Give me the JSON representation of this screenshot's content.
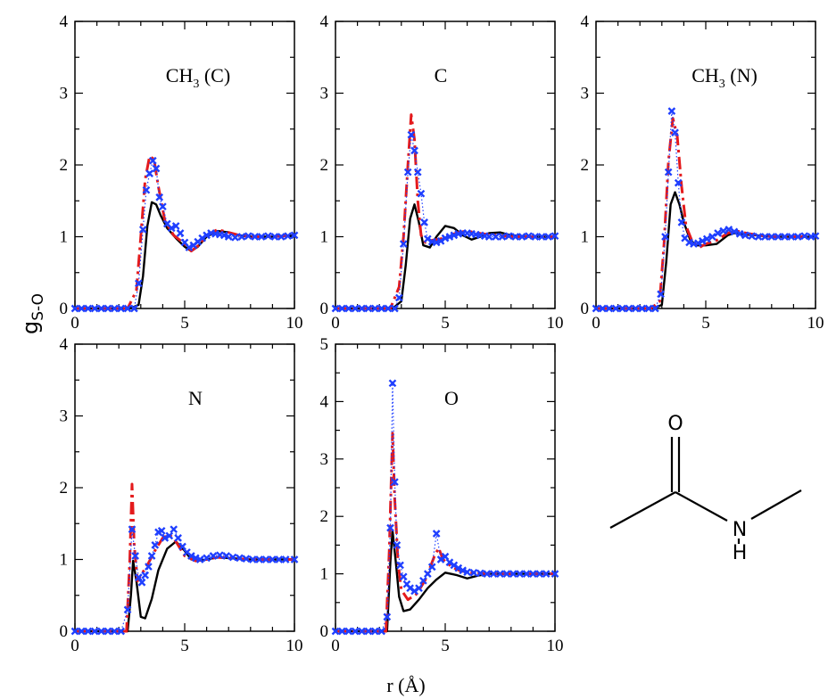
{
  "figure": {
    "ylabel_main": "g",
    "ylabel_sub": "S-O",
    "xlabel": "r (Å)"
  },
  "molecule": {
    "atoms": [
      "O",
      "N",
      "H"
    ]
  },
  "chart_data": [
    {
      "type": "line",
      "title_main": "CH",
      "title_sub": "3",
      "title_rest": " (C)",
      "xlim": [
        0,
        10
      ],
      "ylim": [
        0,
        4
      ],
      "xticks": [
        0,
        5,
        10
      ],
      "yticks": [
        0,
        1,
        2,
        3,
        4
      ],
      "series": [
        {
          "color": "#000000",
          "style": "solid",
          "x": [
            0,
            2.5,
            2.9,
            3.1,
            3.3,
            3.5,
            3.7,
            3.9,
            4.2,
            4.6,
            5.0,
            5.3,
            5.6,
            6.0,
            6.5,
            7.0,
            7.5,
            8.0,
            9.0,
            10.0
          ],
          "y": [
            0,
            0,
            0.05,
            0.45,
            1.15,
            1.48,
            1.45,
            1.3,
            1.12,
            0.98,
            0.86,
            0.8,
            0.86,
            1.0,
            1.08,
            1.06,
            1.02,
            1.0,
            1.0,
            1.02
          ]
        },
        {
          "color": "#e41a1c",
          "style": "dash",
          "x": [
            0,
            2.4,
            2.8,
            3.0,
            3.2,
            3.4,
            3.6,
            3.8,
            4.1,
            4.5,
            5.0,
            5.3,
            5.6,
            6.0,
            6.5,
            7.0,
            7.5,
            8.0,
            9.0,
            10.0
          ],
          "y": [
            0,
            0,
            0.25,
            1.0,
            1.8,
            2.12,
            2.08,
            1.7,
            1.22,
            1.02,
            0.9,
            0.8,
            0.87,
            1.02,
            1.1,
            1.06,
            1.02,
            1.0,
            1.0,
            1.02
          ]
        },
        {
          "color": "#1f3fff",
          "style": "markers",
          "x": [
            0,
            0.3,
            0.6,
            0.9,
            1.2,
            1.5,
            1.8,
            2.1,
            2.4,
            2.7,
            2.9,
            3.1,
            3.25,
            3.4,
            3.55,
            3.7,
            3.85,
            4.0,
            4.2,
            4.4,
            4.6,
            4.8,
            5.0,
            5.2,
            5.4,
            5.6,
            5.8,
            6.0,
            6.2,
            6.4,
            6.6,
            6.8,
            7.0,
            7.3,
            7.6,
            7.9,
            8.2,
            8.5,
            8.8,
            9.1,
            9.4,
            9.7,
            10.0
          ],
          "y": [
            0,
            0,
            0,
            0,
            0,
            0,
            0,
            0,
            0,
            0,
            0.35,
            1.1,
            1.65,
            1.88,
            2.06,
            1.95,
            1.55,
            1.42,
            1.18,
            1.12,
            1.15,
            1.05,
            0.92,
            0.85,
            0.88,
            0.93,
            0.98,
            1.02,
            1.05,
            1.04,
            1.03,
            1.02,
            1.0,
            0.99,
            1.0,
            1.01,
            1.0,
            1.0,
            1.01,
            1.0,
            1.0,
            1.01,
            1.02
          ]
        }
      ]
    },
    {
      "type": "line",
      "title_main": "C",
      "title_sub": "",
      "title_rest": "",
      "xlim": [
        0,
        10
      ],
      "ylim": [
        0,
        4
      ],
      "xticks": [
        0,
        5,
        10
      ],
      "yticks": [
        0,
        1,
        2,
        3,
        4
      ],
      "series": [
        {
          "color": "#000000",
          "style": "solid",
          "x": [
            0,
            2.6,
            3.0,
            3.2,
            3.4,
            3.6,
            3.8,
            4.0,
            4.3,
            4.6,
            5.0,
            5.4,
            5.8,
            6.2,
            6.6,
            7.0,
            7.5,
            8.0,
            9.0,
            10.0
          ],
          "y": [
            0,
            0,
            0.1,
            0.6,
            1.25,
            1.45,
            1.2,
            0.88,
            0.85,
            1.0,
            1.15,
            1.12,
            1.02,
            0.96,
            1.0,
            1.05,
            1.06,
            1.02,
            1.0,
            1.0
          ]
        },
        {
          "color": "#e41a1c",
          "style": "dash",
          "x": [
            0,
            2.5,
            2.9,
            3.1,
            3.3,
            3.45,
            3.6,
            3.75,
            3.9,
            4.1,
            4.4,
            4.8,
            5.2,
            5.6,
            6.0,
            6.5,
            7.0,
            8.0,
            9.0,
            10.0
          ],
          "y": [
            0,
            0,
            0.3,
            1.0,
            2.0,
            2.7,
            2.35,
            1.5,
            1.02,
            0.92,
            0.95,
            0.97,
            1.02,
            1.06,
            1.08,
            1.05,
            1.03,
            1.0,
            1.0,
            1.0
          ]
        },
        {
          "color": "#1f3fff",
          "style": "markers",
          "x": [
            0,
            0.3,
            0.6,
            0.9,
            1.2,
            1.5,
            1.8,
            2.1,
            2.4,
            2.7,
            2.9,
            3.1,
            3.3,
            3.45,
            3.6,
            3.75,
            3.9,
            4.05,
            4.2,
            4.4,
            4.6,
            4.8,
            5.0,
            5.2,
            5.4,
            5.6,
            5.8,
            6.0,
            6.2,
            6.4,
            6.6,
            6.8,
            7.0,
            7.3,
            7.6,
            7.9,
            8.2,
            8.5,
            8.8,
            9.1,
            9.4,
            9.7,
            10.0
          ],
          "y": [
            0,
            0,
            0,
            0,
            0,
            0,
            0,
            0,
            0,
            0,
            0.15,
            0.9,
            1.9,
            2.42,
            2.2,
            1.9,
            1.6,
            1.2,
            0.97,
            0.93,
            0.92,
            0.94,
            0.98,
            1.0,
            1.02,
            1.04,
            1.05,
            1.05,
            1.04,
            1.03,
            1.02,
            1.01,
            1.0,
            1.0,
            1.0,
            1.01,
            1.0,
            1.0,
            1.01,
            1.0,
            1.0,
            1.0,
            1.01
          ]
        }
      ]
    },
    {
      "type": "line",
      "title_main": "CH",
      "title_sub": "3",
      "title_rest": " (N)",
      "xlim": [
        0,
        10
      ],
      "ylim": [
        0,
        4
      ],
      "xticks": [
        0,
        5,
        10
      ],
      "yticks": [
        0,
        1,
        2,
        3,
        4
      ],
      "series": [
        {
          "color": "#000000",
          "style": "solid",
          "x": [
            0,
            2.6,
            3.0,
            3.2,
            3.4,
            3.6,
            3.8,
            4.0,
            4.3,
            4.6,
            5.0,
            5.5,
            6.0,
            6.3,
            6.8,
            7.3,
            8.0,
            9.0,
            10.0
          ],
          "y": [
            0,
            0,
            0.05,
            0.65,
            1.45,
            1.62,
            1.45,
            1.2,
            0.95,
            0.88,
            0.88,
            0.9,
            1.02,
            1.05,
            1.03,
            1.02,
            1.0,
            1.0,
            1.0
          ]
        },
        {
          "color": "#e41a1c",
          "style": "dash",
          "x": [
            0,
            2.5,
            2.9,
            3.1,
            3.3,
            3.5,
            3.7,
            3.9,
            4.1,
            4.4,
            4.7,
            5.0,
            5.5,
            6.0,
            6.4,
            7.0,
            8.0,
            9.0,
            10.0
          ],
          "y": [
            0,
            0,
            0.1,
            0.9,
            2.05,
            2.65,
            2.4,
            1.7,
            1.15,
            0.92,
            0.85,
            0.9,
            0.95,
            1.05,
            1.08,
            1.04,
            1.0,
            1.0,
            1.0
          ]
        },
        {
          "color": "#1f3fff",
          "style": "markers",
          "x": [
            0,
            0.3,
            0.6,
            0.9,
            1.2,
            1.5,
            1.8,
            2.1,
            2.4,
            2.7,
            2.95,
            3.15,
            3.3,
            3.45,
            3.6,
            3.75,
            3.9,
            4.05,
            4.25,
            4.45,
            4.65,
            4.85,
            5.05,
            5.3,
            5.55,
            5.8,
            6.05,
            6.3,
            6.55,
            6.8,
            7.1,
            7.4,
            7.7,
            8.0,
            8.3,
            8.6,
            8.9,
            9.2,
            9.5,
            9.8,
            10.0
          ],
          "y": [
            0,
            0,
            0,
            0,
            0,
            0,
            0,
            0,
            0,
            0,
            0.2,
            1.0,
            1.9,
            2.75,
            2.45,
            1.75,
            1.2,
            0.98,
            0.92,
            0.9,
            0.91,
            0.94,
            0.97,
            1.0,
            1.05,
            1.08,
            1.1,
            1.07,
            1.04,
            1.02,
            1.01,
            1.0,
            1.0,
            1.0,
            1.0,
            1.0,
            1.0,
            1.0,
            1.01,
            1.0,
            1.01
          ]
        }
      ]
    },
    {
      "type": "line",
      "title_main": "N",
      "title_sub": "",
      "title_rest": "",
      "xlim": [
        0,
        10
      ],
      "ylim": [
        0,
        4
      ],
      "xticks": [
        0,
        5,
        10
      ],
      "yticks": [
        0,
        1,
        2,
        3,
        4
      ],
      "series": [
        {
          "color": "#000000",
          "style": "solid",
          "x": [
            0,
            2.4,
            2.55,
            2.65,
            2.8,
            3.0,
            3.2,
            3.5,
            3.8,
            4.2,
            4.6,
            5.0,
            5.3,
            5.6,
            6.0,
            6.5,
            7.0,
            8.0,
            9.0,
            10.0
          ],
          "y": [
            0,
            0,
            0.5,
            0.98,
            0.7,
            0.2,
            0.18,
            0.45,
            0.85,
            1.15,
            1.25,
            1.12,
            1.0,
            0.98,
            1.0,
            1.03,
            1.02,
            1.0,
            1.0,
            1.0
          ]
        },
        {
          "color": "#e41a1c",
          "style": "dash",
          "x": [
            0,
            2.35,
            2.5,
            2.6,
            2.7,
            2.85,
            3.0,
            3.3,
            3.6,
            4.0,
            4.3,
            4.6,
            5.0,
            5.5,
            6.0,
            6.5,
            7.0,
            8.0,
            9.0,
            10.0
          ],
          "y": [
            0,
            0,
            1.0,
            2.05,
            1.2,
            0.7,
            0.78,
            0.92,
            1.1,
            1.3,
            1.35,
            1.25,
            1.05,
            0.98,
            1.0,
            1.03,
            1.02,
            1.0,
            1.0,
            1.0
          ]
        },
        {
          "color": "#1f3fff",
          "style": "markers",
          "x": [
            0,
            0.3,
            0.6,
            0.9,
            1.2,
            1.5,
            1.8,
            2.1,
            2.4,
            2.6,
            2.75,
            2.9,
            3.05,
            3.2,
            3.35,
            3.5,
            3.65,
            3.8,
            3.95,
            4.1,
            4.3,
            4.5,
            4.7,
            4.9,
            5.1,
            5.3,
            5.5,
            5.7,
            6.0,
            6.3,
            6.6,
            6.9,
            7.2,
            7.5,
            7.8,
            8.1,
            8.4,
            8.7,
            9.0,
            9.3,
            9.6,
            10.0
          ],
          "y": [
            0,
            0,
            0,
            0,
            0,
            0,
            0,
            0,
            0.3,
            1.42,
            1.05,
            0.75,
            0.68,
            0.78,
            0.9,
            1.05,
            1.2,
            1.38,
            1.4,
            1.3,
            1.33,
            1.42,
            1.3,
            1.18,
            1.1,
            1.05,
            1.02,
            1.0,
            1.02,
            1.05,
            1.06,
            1.05,
            1.03,
            1.02,
            1.01,
            1.0,
            1.0,
            1.0,
            1.0,
            1.0,
            1.0,
            1.0
          ]
        }
      ]
    },
    {
      "type": "line",
      "title_main": "O",
      "title_sub": "",
      "title_rest": "",
      "xlim": [
        0,
        10
      ],
      "ylim": [
        0,
        5
      ],
      "xticks": [
        0,
        5,
        10
      ],
      "yticks": [
        0,
        1,
        2,
        3,
        4,
        5
      ],
      "series": [
        {
          "color": "#000000",
          "style": "solid",
          "x": [
            0,
            2.35,
            2.5,
            2.6,
            2.75,
            2.9,
            3.1,
            3.4,
            3.8,
            4.2,
            4.6,
            5.0,
            5.5,
            6.0,
            6.5,
            7.0,
            8.0,
            9.0,
            10.0
          ],
          "y": [
            0,
            0,
            1.2,
            1.75,
            1.2,
            0.6,
            0.35,
            0.38,
            0.55,
            0.75,
            0.9,
            1.02,
            0.98,
            0.92,
            0.97,
            1.0,
            1.0,
            1.0,
            1.0
          ]
        },
        {
          "color": "#e41a1c",
          "style": "dash",
          "x": [
            0,
            2.3,
            2.45,
            2.6,
            2.7,
            2.85,
            3.0,
            3.3,
            3.7,
            4.1,
            4.5,
            4.7,
            4.9,
            5.3,
            5.7,
            6.2,
            7.0,
            8.0,
            9.0,
            10.0
          ],
          "y": [
            0,
            0,
            1.4,
            3.45,
            2.3,
            1.2,
            0.72,
            0.55,
            0.65,
            0.9,
            1.3,
            1.45,
            1.25,
            1.12,
            1.05,
            1.02,
            1.0,
            1.0,
            1.0,
            1.0
          ]
        },
        {
          "color": "#1f3fff",
          "style": "markers",
          "x": [
            0,
            0.3,
            0.6,
            0.9,
            1.2,
            1.5,
            1.8,
            2.1,
            2.35,
            2.5,
            2.6,
            2.7,
            2.8,
            2.95,
            3.1,
            3.25,
            3.4,
            3.6,
            3.8,
            4.0,
            4.2,
            4.4,
            4.6,
            4.8,
            5.0,
            5.2,
            5.4,
            5.6,
            5.8,
            6.0,
            6.3,
            6.6,
            6.9,
            7.2,
            7.5,
            7.8,
            8.1,
            8.4,
            8.7,
            9.0,
            9.3,
            9.6,
            10.0
          ],
          "y": [
            0,
            0,
            0,
            0,
            0,
            0,
            0,
            0,
            0.25,
            1.8,
            4.32,
            2.6,
            1.5,
            1.15,
            0.95,
            0.82,
            0.75,
            0.7,
            0.75,
            0.88,
            1.0,
            1.12,
            1.7,
            1.25,
            1.3,
            1.2,
            1.15,
            1.1,
            1.06,
            1.03,
            1.02,
            1.01,
            1.0,
            1.0,
            1.0,
            1.0,
            1.0,
            1.0,
            1.0,
            1.0,
            1.0,
            1.0,
            1.0
          ]
        }
      ]
    }
  ]
}
